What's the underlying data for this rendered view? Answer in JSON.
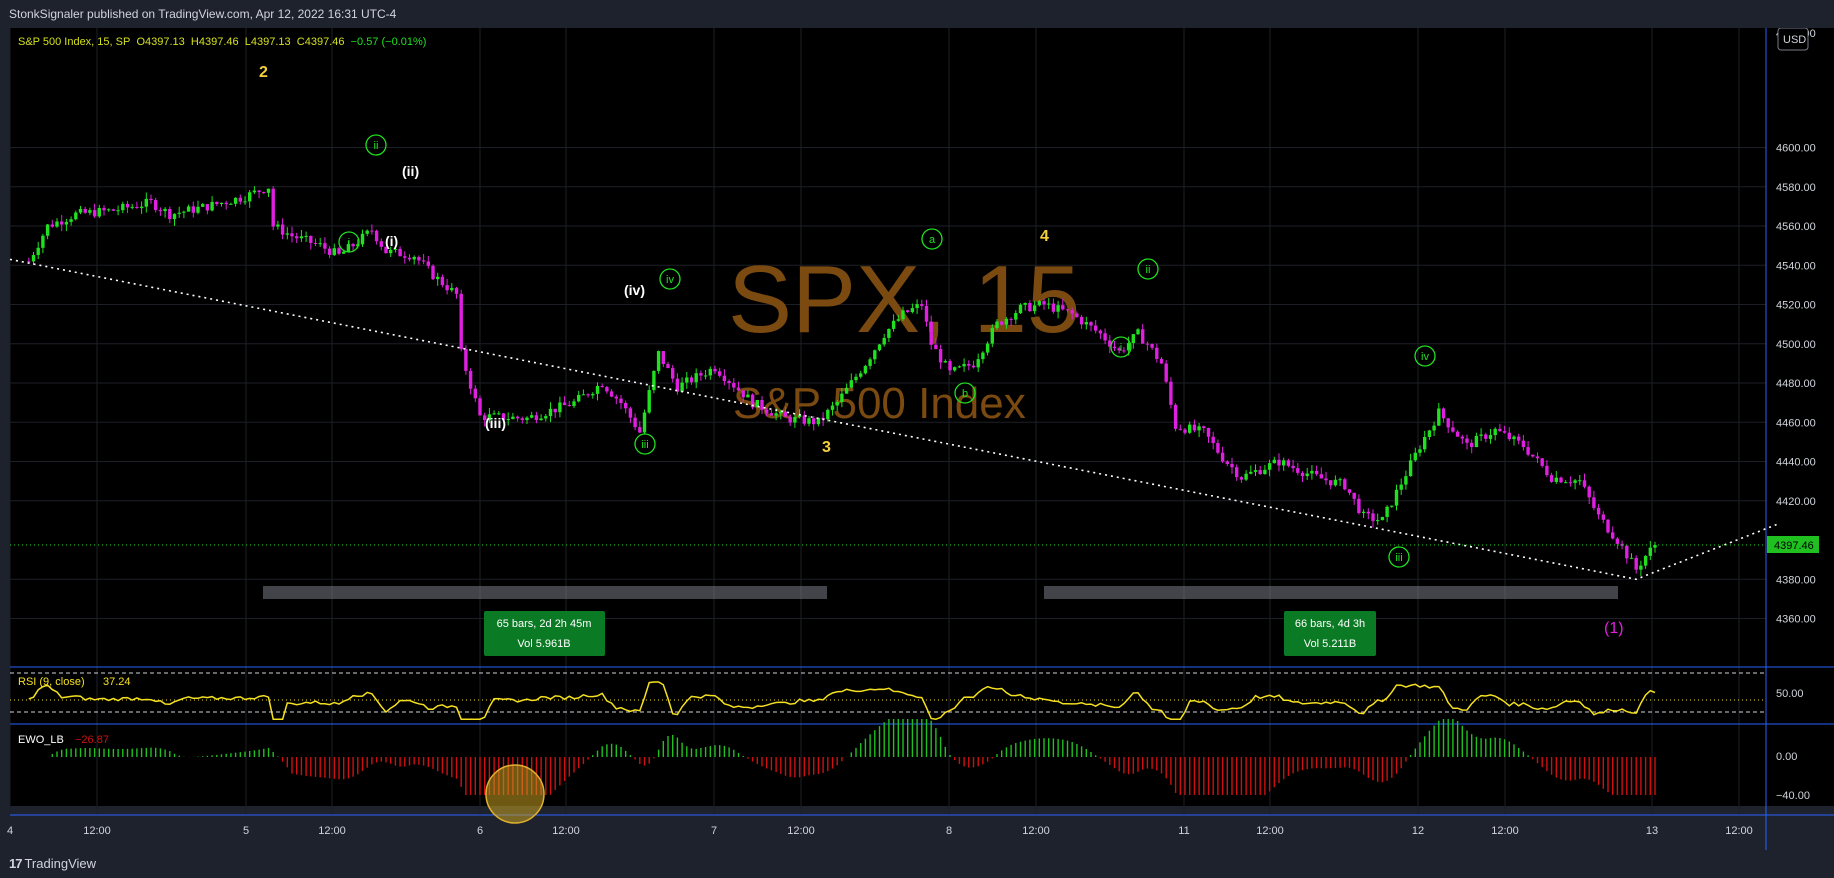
{
  "header": {
    "published": "StonkSignaler published on TradingView.com, Apr 12, 2022 16:31 UTC-4"
  },
  "legend": {
    "symbol": "S&P 500 Index, 15, SP",
    "open_label": "O",
    "open": "4397.13",
    "high_label": "H",
    "high": "4397.46",
    "low_label": "L",
    "low": "4397.13",
    "close_label": "C",
    "close": "4397.46",
    "change": "−0.57 (−0.01%)"
  },
  "watermark": {
    "ticker": "SPX, 15",
    "name": "S&P 500 Index"
  },
  "price_axis": {
    "currency": "USD",
    "ticks": [
      "4600.00",
      "4580.00",
      "4560.00",
      "4540.00",
      "4520.00",
      "4500.00",
      "4480.00",
      "4460.00",
      "4440.00",
      "4420.00",
      "4380.00",
      "4360.00"
    ],
    "partial_top": "4620.00",
    "last_price": "4397.46",
    "last_price_color": "#20e020"
  },
  "time_axis": {
    "labels": [
      "4",
      "12:00",
      "5",
      "12:00",
      "6",
      "12:00",
      "7",
      "12:00",
      "8",
      "12:00",
      "11",
      "12:00",
      "12",
      "12:00",
      "13",
      "12:00"
    ]
  },
  "wave_labels": {
    "major": [
      "2",
      "3",
      "4"
    ],
    "minor_white": [
      "(ii)",
      "(i)",
      "(iv)",
      "(iii)"
    ],
    "circled_green": [
      "ii",
      "i",
      "iv",
      "iii",
      "a",
      "b",
      "ii",
      "i",
      "iv",
      "iii"
    ],
    "final": "(1)"
  },
  "range_boxes": [
    {
      "bars": "65 bars, 2d 2h 45m",
      "vol": "Vol 5.961B"
    },
    {
      "bars": "66 bars, 4d 3h",
      "vol": "Vol 5.211B"
    }
  ],
  "rsi": {
    "label": "RSI (9, close)",
    "value": "37.24",
    "axis": "50.00"
  },
  "ewo": {
    "label": "EWO_LB",
    "value": "−26.87",
    "axis": [
      "0.00",
      "−40.00"
    ]
  },
  "colors": {
    "up": "#20e020",
    "down": "#e020e0",
    "background": "#000000",
    "frame": "#1e222d",
    "separator": "#2962ff",
    "rsi_line": "#f5e020",
    "ewo_pos": "#20c020",
    "ewo_neg": "#d01010"
  },
  "chart_data": {
    "type": "candlestick",
    "title": "S&P 500 Index, 15, SP",
    "ylim": [
      4340,
      4620
    ],
    "price_path": [
      [
        4,
        4542
      ],
      [
        8,
        4560
      ],
      [
        14,
        4566
      ],
      [
        22,
        4568
      ],
      [
        30,
        4572
      ],
      [
        34,
        4566
      ],
      [
        42,
        4570
      ],
      [
        50,
        4575
      ],
      [
        55,
        4580
      ],
      [
        56,
        4560
      ],
      [
        60,
        4555
      ],
      [
        66,
        4550
      ],
      [
        70,
        4545
      ],
      [
        74,
        4552
      ],
      [
        77,
        4558
      ],
      [
        80,
        4547
      ],
      [
        86,
        4545
      ],
      [
        90,
        4535
      ],
      [
        95,
        4525
      ],
      [
        96,
        4495
      ],
      [
        100,
        4463
      ],
      [
        110,
        4462
      ],
      [
        120,
        4470
      ],
      [
        126,
        4480
      ],
      [
        130,
        4470
      ],
      [
        134,
        4455
      ],
      [
        138,
        4495
      ],
      [
        142,
        4478
      ],
      [
        150,
        4488
      ],
      [
        158,
        4470
      ],
      [
        165,
        4462
      ],
      [
        172,
        4460
      ],
      [
        176,
        4470
      ],
      [
        182,
        4490
      ],
      [
        186,
        4505
      ],
      [
        190,
        4515
      ],
      [
        194,
        4520
      ],
      [
        196,
        4500
      ],
      [
        200,
        4485
      ],
      [
        205,
        4490
      ],
      [
        210,
        4510
      ],
      [
        215,
        4518
      ],
      [
        220,
        4520
      ],
      [
        226,
        4515
      ],
      [
        232,
        4505
      ],
      [
        236,
        4496
      ],
      [
        240,
        4505
      ],
      [
        242,
        4500
      ],
      [
        245,
        4490
      ],
      [
        248,
        4458
      ],
      [
        254,
        4455
      ],
      [
        258,
        4442
      ],
      [
        262,
        4432
      ],
      [
        270,
        4440
      ],
      [
        278,
        4432
      ],
      [
        284,
        4428
      ],
      [
        288,
        4412
      ],
      [
        292,
        4410
      ],
      [
        300,
        4448
      ],
      [
        304,
        4465
      ],
      [
        310,
        4448
      ],
      [
        316,
        4456
      ],
      [
        322,
        4448
      ],
      [
        328,
        4432
      ],
      [
        334,
        4430
      ],
      [
        338,
        4412
      ],
      [
        342,
        4400
      ],
      [
        346,
        4385
      ],
      [
        348,
        4392
      ],
      [
        350,
        4397.46
      ]
    ],
    "trendline": [
      [
        0,
        4543
      ],
      [
        346,
        4380
      ],
      [
        376,
        4408
      ]
    ],
    "rsi": {
      "value": 37.24,
      "ref_levels": [
        70,
        50,
        30
      ]
    },
    "ewo": {
      "value": -26.87,
      "ref": 0
    },
    "x_ticks": [
      "4",
      "12:00",
      "5",
      "12:00",
      "6",
      "12:00",
      "7",
      "12:00",
      "8",
      "12:00",
      "11",
      "12:00",
      "12",
      "12:00",
      "13",
      "12:00"
    ]
  }
}
